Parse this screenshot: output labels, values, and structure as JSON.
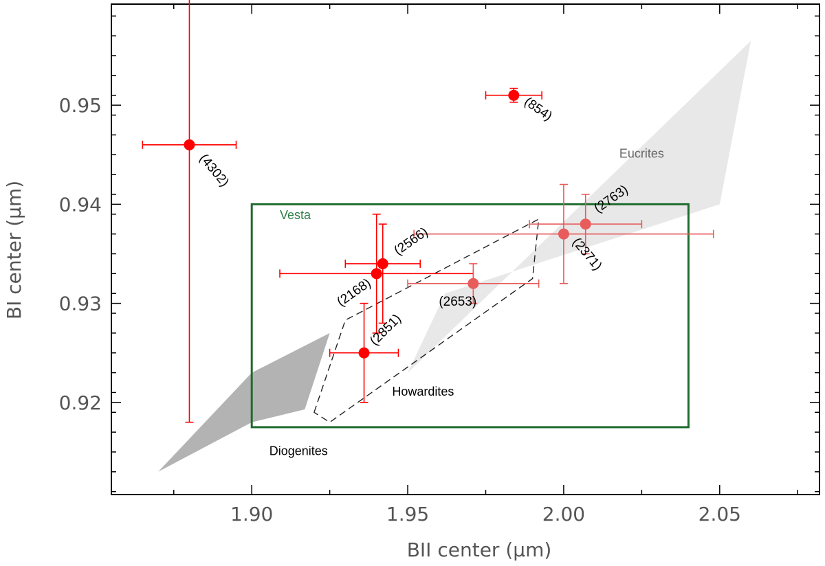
{
  "chart_data": {
    "type": "scatter",
    "xlabel": "BII center (μm)",
    "ylabel": "BI center (μm)",
    "xlim": [
      1.855,
      2.082
    ],
    "ylim": [
      0.9107,
      0.9602
    ],
    "x_ticks": [
      "1.90",
      "1.95",
      "2.00",
      "2.05"
    ],
    "x_tick_values": [
      1.9,
      1.95,
      2.0,
      2.05
    ],
    "y_ticks": [
      "0.92",
      "0.93",
      "0.94",
      "0.95"
    ],
    "y_tick_values": [
      0.92,
      0.93,
      0.94,
      0.95
    ],
    "grid": false,
    "points": [
      {
        "label": "(4302)",
        "x": 1.88,
        "y": 0.946,
        "xerr": 0.015,
        "yerr_low": 0.028,
        "yerr_high": 0.015,
        "color": "#ff0000"
      },
      {
        "label": "(854)",
        "x": 1.984,
        "y": 0.951,
        "xerr": 0.009,
        "yerr_low": 0.0007,
        "yerr_high": 0.0007,
        "color": "#ff0000"
      },
      {
        "label": "(2566)",
        "x": 1.942,
        "y": 0.934,
        "xerr": 0.012,
        "yerr_low": 0.006,
        "yerr_high": 0.004,
        "color": "#ff0000"
      },
      {
        "label": "(2168)",
        "x": 1.94,
        "y": 0.933,
        "xerr": 0.031,
        "yerr_low": 0.006,
        "yerr_high": 0.006,
        "color": "#ff0000"
      },
      {
        "label": "(2851)",
        "x": 1.936,
        "y": 0.925,
        "xerr": 0.011,
        "yerr_low": 0.005,
        "yerr_high": 0.005,
        "color": "#ff0000"
      },
      {
        "label": "(2653)",
        "x": 1.971,
        "y": 0.932,
        "xerr": 0.021,
        "yerr_low": 0.002,
        "yerr_high": 0.002,
        "color": "#e85c5c"
      },
      {
        "label": "(2371)",
        "x": 2.0,
        "y": 0.937,
        "xerr": 0.048,
        "yerr_low": 0.005,
        "yerr_high": 0.005,
        "color": "#e85c5c"
      },
      {
        "label": "(2763)",
        "x": 2.007,
        "y": 0.938,
        "xerr": 0.018,
        "yerr_low": 0.003,
        "yerr_high": 0.003,
        "color": "#e85c5c"
      }
    ],
    "regions": [
      {
        "name": "Eucrites",
        "fill": "#e8e8e8",
        "polygon": [
          [
            1.95,
            0.923
          ],
          [
            2.06,
            0.9565
          ],
          [
            2.05,
            0.94
          ],
          [
            1.962,
            0.931
          ]
        ]
      },
      {
        "name": "Diogenites",
        "fill": "#b3b3b3",
        "polygon": [
          [
            1.87,
            0.913
          ],
          [
            1.9,
            0.923
          ],
          [
            1.925,
            0.927
          ],
          [
            1.917,
            0.9193
          ],
          [
            1.9,
            0.918
          ]
        ]
      },
      {
        "name": "Howardites",
        "style": "dashed",
        "polygon": [
          [
            1.92,
            0.919
          ],
          [
            1.93,
            0.9283
          ],
          [
            1.992,
            0.9385
          ],
          [
            1.99,
            0.9325
          ],
          [
            1.925,
            0.918
          ]
        ]
      },
      {
        "name": "Vesta",
        "stroke": "#1e6b2e",
        "rect": {
          "x0": 1.9,
          "x1": 2.04,
          "y0": 0.9175,
          "y1": 0.94
        }
      }
    ],
    "region_label_colors": {
      "Eucrites": "#666666",
      "Diogenites": "#000000",
      "Howardites": "#000000",
      "Vesta": "#2e7d45"
    }
  }
}
